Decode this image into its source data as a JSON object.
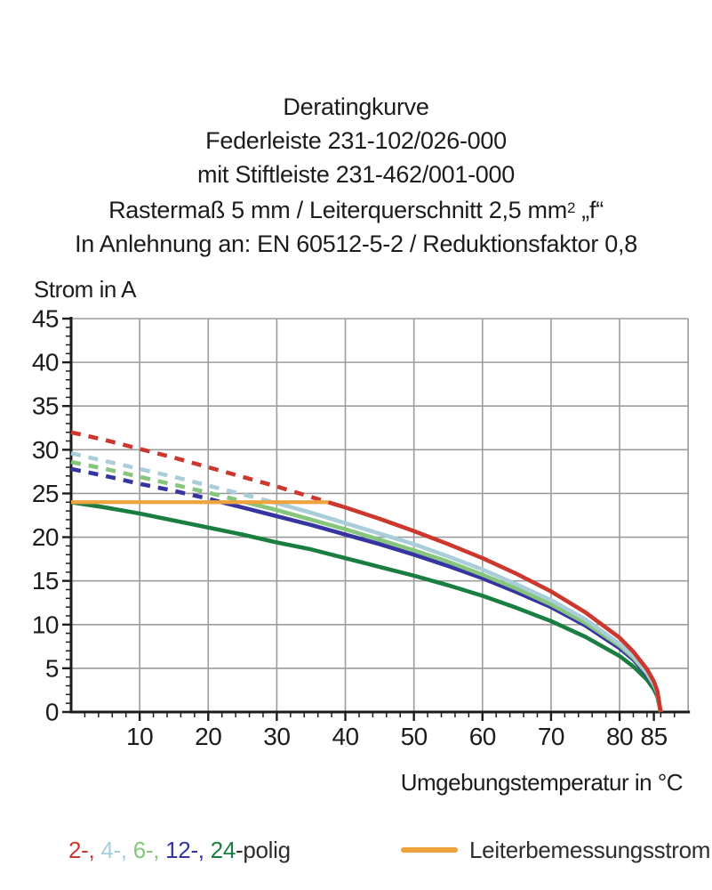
{
  "chart_data": {
    "type": "line",
    "title": "Deratingkurve",
    "subtitle_lines": [
      "Federleiste 231-102/026-000",
      "mit Stiftleiste 231-462/001-000"
    ],
    "subtitle4": {
      "pre": "Rastermaß 5 mm / Leiterquerschnitt 2,5 mm",
      "sup": "2",
      "post": " „f“"
    },
    "subtitle5": "In Anlehnung an: EN 60512-5-2 / Reduktionsfaktor 0,8",
    "xlabel": "Umgebungstemperatur in °C",
    "ylabel": "Strom in A",
    "xlim": [
      0,
      90
    ],
    "ylim": [
      0,
      45
    ],
    "x_major_ticks": [
      10,
      20,
      30,
      40,
      50,
      60,
      70,
      80,
      85
    ],
    "x_gridlines": [
      10,
      20,
      30,
      40,
      50,
      60,
      70,
      80
    ],
    "x_minor_step": 2,
    "y_major_step": 5,
    "y_minor_step": 1,
    "grid": "on",
    "grid_color": "#9c9c9c",
    "axis_color": "#1c1c1c",
    "rated_current": {
      "label": "Leiterbemessungsstrom",
      "value": 24,
      "t_start": 0,
      "t_end": 37.5,
      "color": "#eea33c"
    },
    "t": [
      0,
      5,
      10,
      15,
      20,
      25,
      30,
      35,
      40,
      45,
      50,
      55,
      60,
      65,
      70,
      75,
      80,
      82,
      84,
      85,
      85.5,
      86
    ],
    "series": [
      {
        "name": "24-polig",
        "color": "#1b7e41",
        "t_rated": 0,
        "values": [
          24.0,
          23.4,
          22.7,
          21.9,
          21.1,
          20.3,
          19.4,
          18.6,
          17.6,
          16.6,
          15.6,
          14.5,
          13.3,
          11.9,
          10.4,
          8.6,
          6.4,
          5.2,
          3.7,
          2.6,
          1.8,
          0
        ]
      },
      {
        "name": "12-polig",
        "color": "#3634a0",
        "t_rated": 21.9,
        "values": [
          27.8,
          27.0,
          26.1,
          25.3,
          24.4,
          23.4,
          22.4,
          21.4,
          20.3,
          19.2,
          18.0,
          16.7,
          15.3,
          13.7,
          12.0,
          9.9,
          7.3,
          6.0,
          4.2,
          3.0,
          2.1,
          0
        ]
      },
      {
        "name": "6-polig",
        "color": "#85c57c",
        "t_rated": 25.4,
        "values": [
          28.6,
          27.8,
          26.9,
          26.0,
          25.1,
          24.1,
          23.1,
          22.0,
          20.9,
          19.7,
          18.5,
          17.2,
          15.7,
          14.1,
          12.3,
          10.2,
          7.6,
          6.2,
          4.4,
          3.1,
          2.2,
          0
        ]
      },
      {
        "name": "4-polig",
        "color": "#a9ced9",
        "t_rated": 29.5,
        "values": [
          29.6,
          28.7,
          27.8,
          26.9,
          25.9,
          24.9,
          23.9,
          22.8,
          21.6,
          20.4,
          19.2,
          17.8,
          16.3,
          14.6,
          12.8,
          10.6,
          7.8,
          6.4,
          4.5,
          3.2,
          2.3,
          0
        ]
      },
      {
        "name": "2-polig",
        "color": "#cc382d",
        "t_rated": 37.5,
        "values": [
          32.0,
          31.1,
          30.1,
          29.1,
          28.0,
          26.9,
          25.8,
          24.6,
          23.4,
          22.1,
          20.7,
          19.2,
          17.6,
          15.8,
          13.8,
          11.4,
          8.5,
          6.9,
          4.9,
          3.5,
          2.4,
          0
        ]
      }
    ]
  },
  "legend": {
    "pole_items": [
      {
        "text": "2-, ",
        "color": "#cc382d"
      },
      {
        "text": "4-, ",
        "color": "#a9ced9"
      },
      {
        "text": "6-, ",
        "color": "#85c57c"
      },
      {
        "text": "12-, ",
        "color": "#3634a0"
      },
      {
        "text": "24",
        "color": "#1b7e41"
      },
      {
        "text": "-polig",
        "color": "#2d2d2d"
      }
    ],
    "rated_label": "Leiterbemessungsstrom"
  }
}
